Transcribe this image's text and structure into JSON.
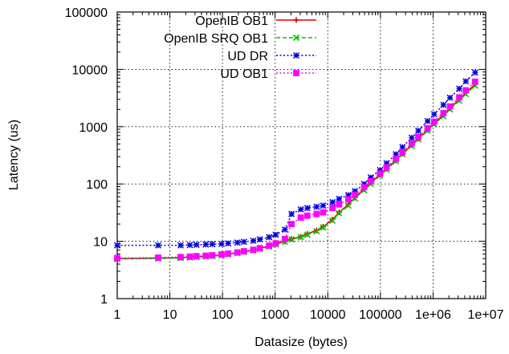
{
  "chart_data": {
    "type": "line",
    "xlabel": "Datasize (bytes)",
    "ylabel": "Latency (us)",
    "xscale": "log",
    "yscale": "log",
    "xlim": [
      1,
      10000000
    ],
    "ylim": [
      1,
      100000
    ],
    "grid": true,
    "legend_position": "top-left",
    "x_ticks": [
      {
        "value": 1,
        "label": "1"
      },
      {
        "value": 10,
        "label": "10"
      },
      {
        "value": 100,
        "label": "100"
      },
      {
        "value": 1000,
        "label": "1000"
      },
      {
        "value": 10000,
        "label": "10000"
      },
      {
        "value": 100000,
        "label": "100000"
      },
      {
        "value": 1000000,
        "label": "1e+06"
      },
      {
        "value": 10000000,
        "label": "1e+07"
      }
    ],
    "y_ticks": [
      {
        "value": 1,
        "label": "1"
      },
      {
        "value": 10,
        "label": "10"
      },
      {
        "value": 100,
        "label": "100"
      },
      {
        "value": 1000,
        "label": "1000"
      },
      {
        "value": 10000,
        "label": "10000"
      },
      {
        "value": 100000,
        "label": "100000"
      }
    ],
    "x": [
      1,
      6,
      16,
      24,
      32,
      48,
      64,
      96,
      128,
      192,
      256,
      384,
      512,
      768,
      1024,
      1536,
      2048,
      3072,
      4096,
      6144,
      8192,
      12288,
      16384,
      24576,
      32768,
      49152,
      65536,
      98304,
      131072,
      196608,
      262144,
      393216,
      524288,
      786432,
      1048576,
      1572864,
      2097152,
      3145728,
      4194304,
      6291456
    ],
    "series": [
      {
        "name": "OpenIB OB1",
        "color": "#e00000",
        "marker": "plus",
        "dash": "solid",
        "values": [
          5.0,
          5.1,
          5.2,
          5.3,
          5.4,
          5.5,
          5.6,
          5.8,
          6.0,
          6.3,
          6.6,
          7.0,
          7.5,
          8.3,
          9.0,
          10.0,
          11.0,
          12.0,
          13.5,
          15.5,
          18.0,
          24.0,
          32.0,
          44.0,
          58.0,
          82.0,
          105.0,
          145.0,
          185.0,
          260.0,
          340.0,
          480.0,
          620.0,
          880.0,
          1150.0,
          1600.0,
          2100.0,
          3000.0,
          3900.0,
          5500.0
        ]
      },
      {
        "name": "OpenIB SRQ OB1",
        "color": "#00c000",
        "marker": "x",
        "dash": "dashed",
        "values": [
          4.9,
          5.0,
          5.1,
          5.2,
          5.3,
          5.4,
          5.5,
          5.7,
          5.9,
          6.2,
          6.5,
          6.9,
          7.3,
          8.1,
          8.8,
          9.8,
          10.8,
          11.8,
          13.0,
          15.0,
          17.5,
          23.0,
          31.0,
          42.0,
          56.0,
          78.0,
          100.0,
          140.0,
          178.0,
          250.0,
          330.0,
          460.0,
          600.0,
          850.0,
          1100.0,
          1520.0,
          2000.0,
          2850.0,
          3700.0,
          5200.0
        ]
      },
      {
        "name": "UD DR",
        "color": "#0000e0",
        "marker": "star",
        "dash": "dotted",
        "values": [
          8.5,
          8.5,
          8.5,
          8.6,
          8.7,
          8.8,
          8.9,
          9.0,
          9.2,
          9.5,
          9.8,
          10.2,
          10.8,
          11.8,
          13.0,
          16.0,
          30.0,
          36.0,
          38.0,
          40.0,
          42.0,
          48.0,
          55.0,
          64.0,
          75.0,
          100.0,
          130.0,
          175.0,
          230.0,
          330.0,
          440.0,
          640.0,
          850.0,
          1250.0,
          1650.0,
          2400.0,
          3200.0,
          4600.0,
          6200.0,
          8800.0
        ]
      },
      {
        "name": "UD OB1",
        "color": "#ff00ff",
        "marker": "square",
        "dash": "dotted",
        "values": [
          5.1,
          5.2,
          5.3,
          5.4,
          5.5,
          5.6,
          5.7,
          5.9,
          6.1,
          6.4,
          6.7,
          7.1,
          7.6,
          8.4,
          9.2,
          11.0,
          20.0,
          26.0,
          28.0,
          30.0,
          32.0,
          38.0,
          44.0,
          54.0,
          65.0,
          88.0,
          112.0,
          152.0,
          195.0,
          275.0,
          360.0,
          510.0,
          660.0,
          940.0,
          1220.0,
          1720.0,
          2250.0,
          3250.0,
          4300.0,
          6100.0
        ]
      }
    ]
  }
}
